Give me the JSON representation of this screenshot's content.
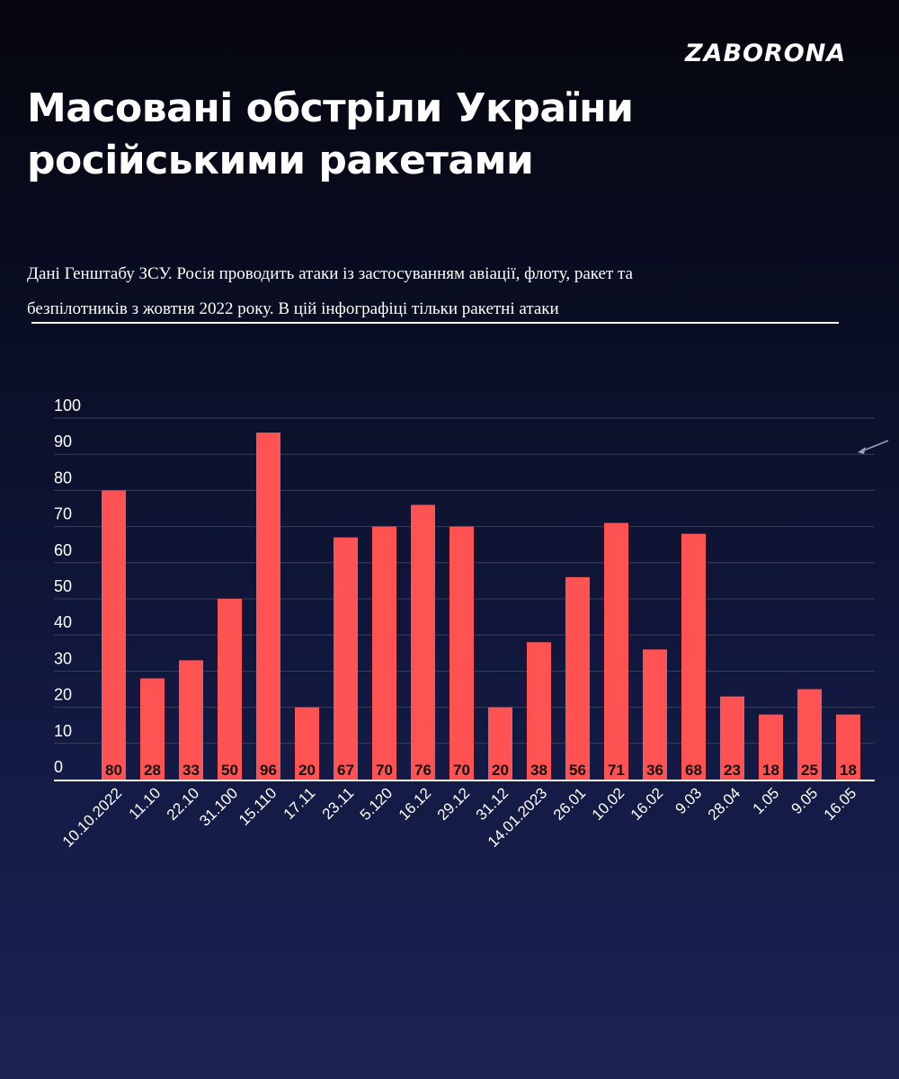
{
  "header": {
    "logo": "ZABORONA",
    "title_line1": "Масовані обстріли України",
    "title_line2": "російськими ракетами",
    "subtitle_line1": "Дані Генштабу ЗСУ.  Росія проводить атаки із застосуванням авіації, флоту, ракет та",
    "subtitle_line2": "безпілотників з жовтня 2022 року. В цій інфографіці тільки ракетні атаки"
  },
  "colors": {
    "bar": "#ff5252",
    "grid": "#3a3f5c",
    "axis": "#ffffff"
  },
  "chart_data": {
    "type": "bar",
    "title": "",
    "xlabel": "",
    "ylabel": "",
    "ylim": [
      0,
      100
    ],
    "yticks": [
      0,
      10,
      20,
      30,
      40,
      50,
      60,
      70,
      80,
      90,
      100
    ],
    "grid": true,
    "data_labels": true,
    "categories": [
      "10.10.2022",
      "11.10",
      "22.10",
      "31.100",
      "15.110",
      "17.11",
      "23.11",
      "5.120",
      "16.12",
      "29.12",
      "31.12",
      "14.01.2023",
      "26.01",
      "10.02",
      "16.02",
      "9.03",
      "28.04",
      "1.05",
      "9.05",
      "16.05"
    ],
    "values": [
      80,
      28,
      33,
      50,
      96,
      20,
      67,
      70,
      76,
      70,
      20,
      38,
      56,
      71,
      36,
      68,
      23,
      18,
      25,
      18
    ]
  }
}
